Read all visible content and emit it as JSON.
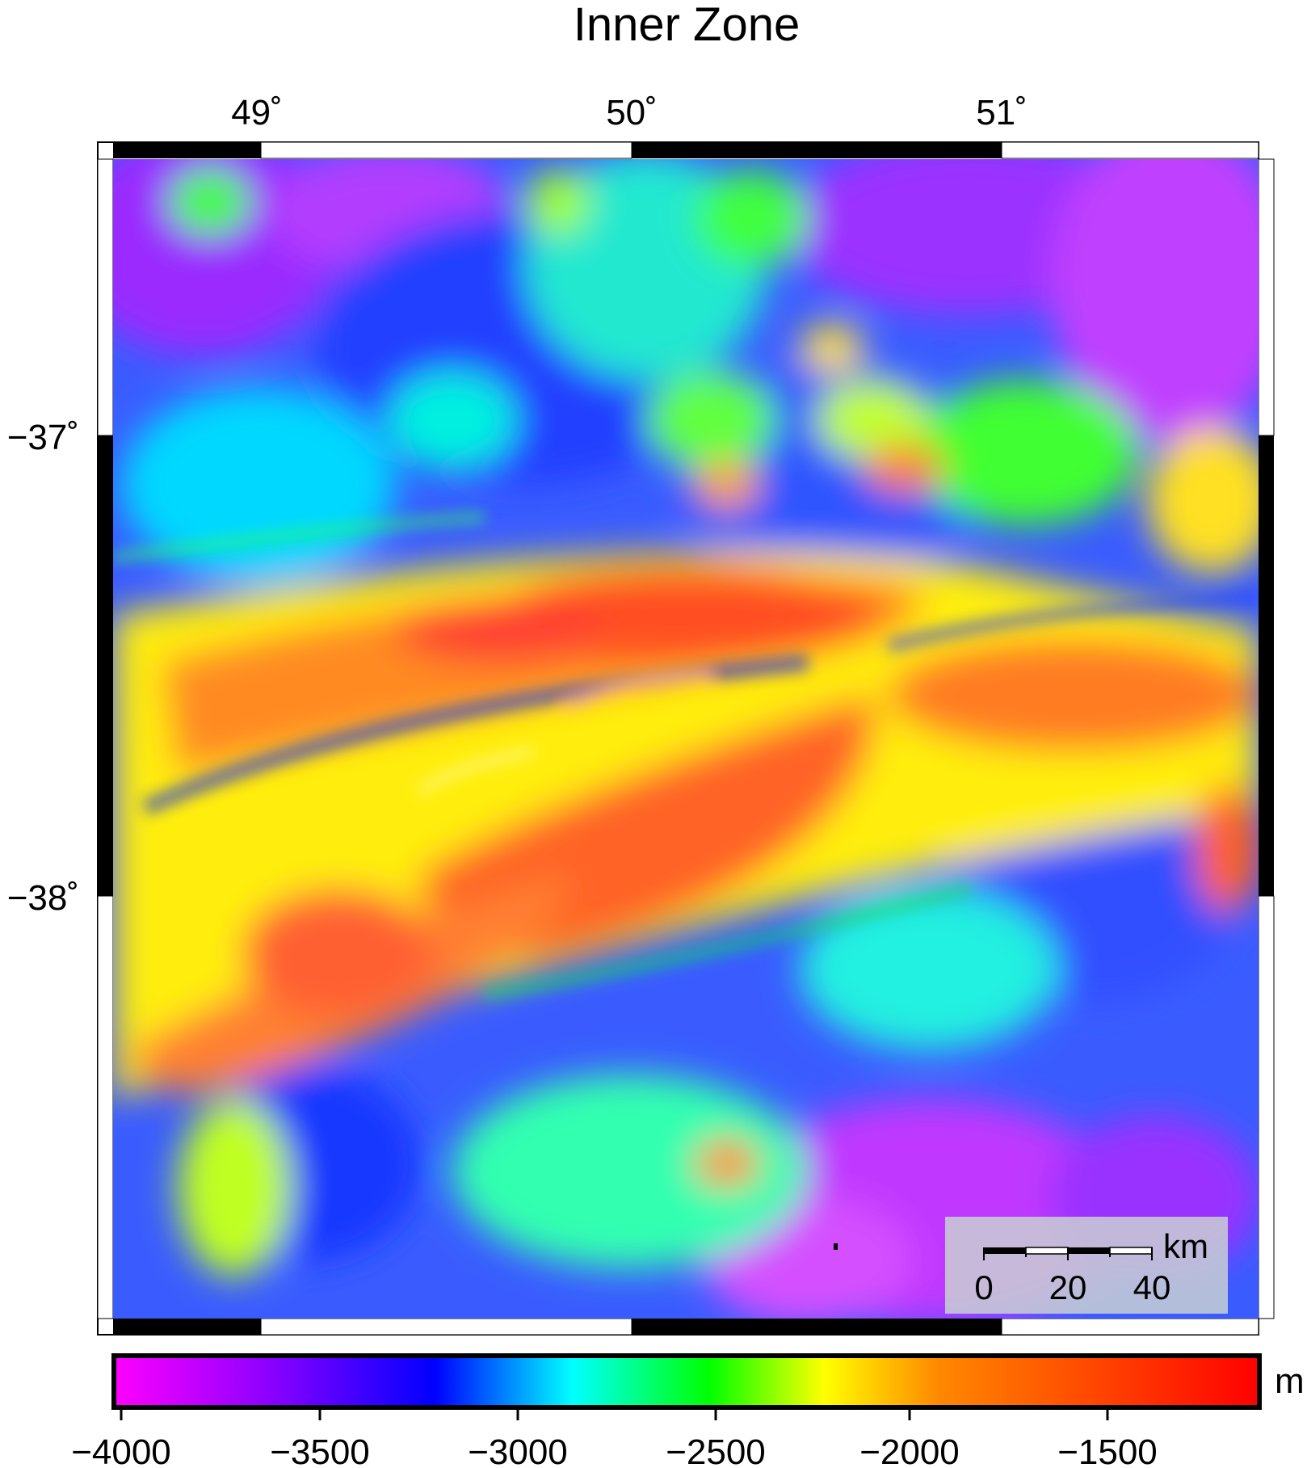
{
  "map": {
    "title": "Inner Zone",
    "longitude_ticks": [
      {
        "value": 49,
        "label": "49˚"
      },
      {
        "value": 50,
        "label": "50˚"
      },
      {
        "value": 51,
        "label": "51˚"
      }
    ],
    "latitude_ticks": [
      {
        "value": -37,
        "label": "−37˚"
      },
      {
        "value": -38,
        "label": "−38˚"
      }
    ],
    "scale_bar": {
      "unit": "km",
      "labels": [
        "0",
        "20",
        "40"
      ]
    },
    "colorbar": {
      "unit": "m",
      "tick_labels": [
        "−4000",
        "−3500",
        "−3000",
        "−2500",
        "−2000",
        "−1500"
      ],
      "colors": [
        "#ff00ff",
        "#8800ff",
        "#0000ff",
        "#00ffff",
        "#00ff00",
        "#ffff00",
        "#ff8800",
        "#ff0000"
      ]
    },
    "frame_colors": {
      "dark": "#000000",
      "light": "#ffffff"
    }
  }
}
